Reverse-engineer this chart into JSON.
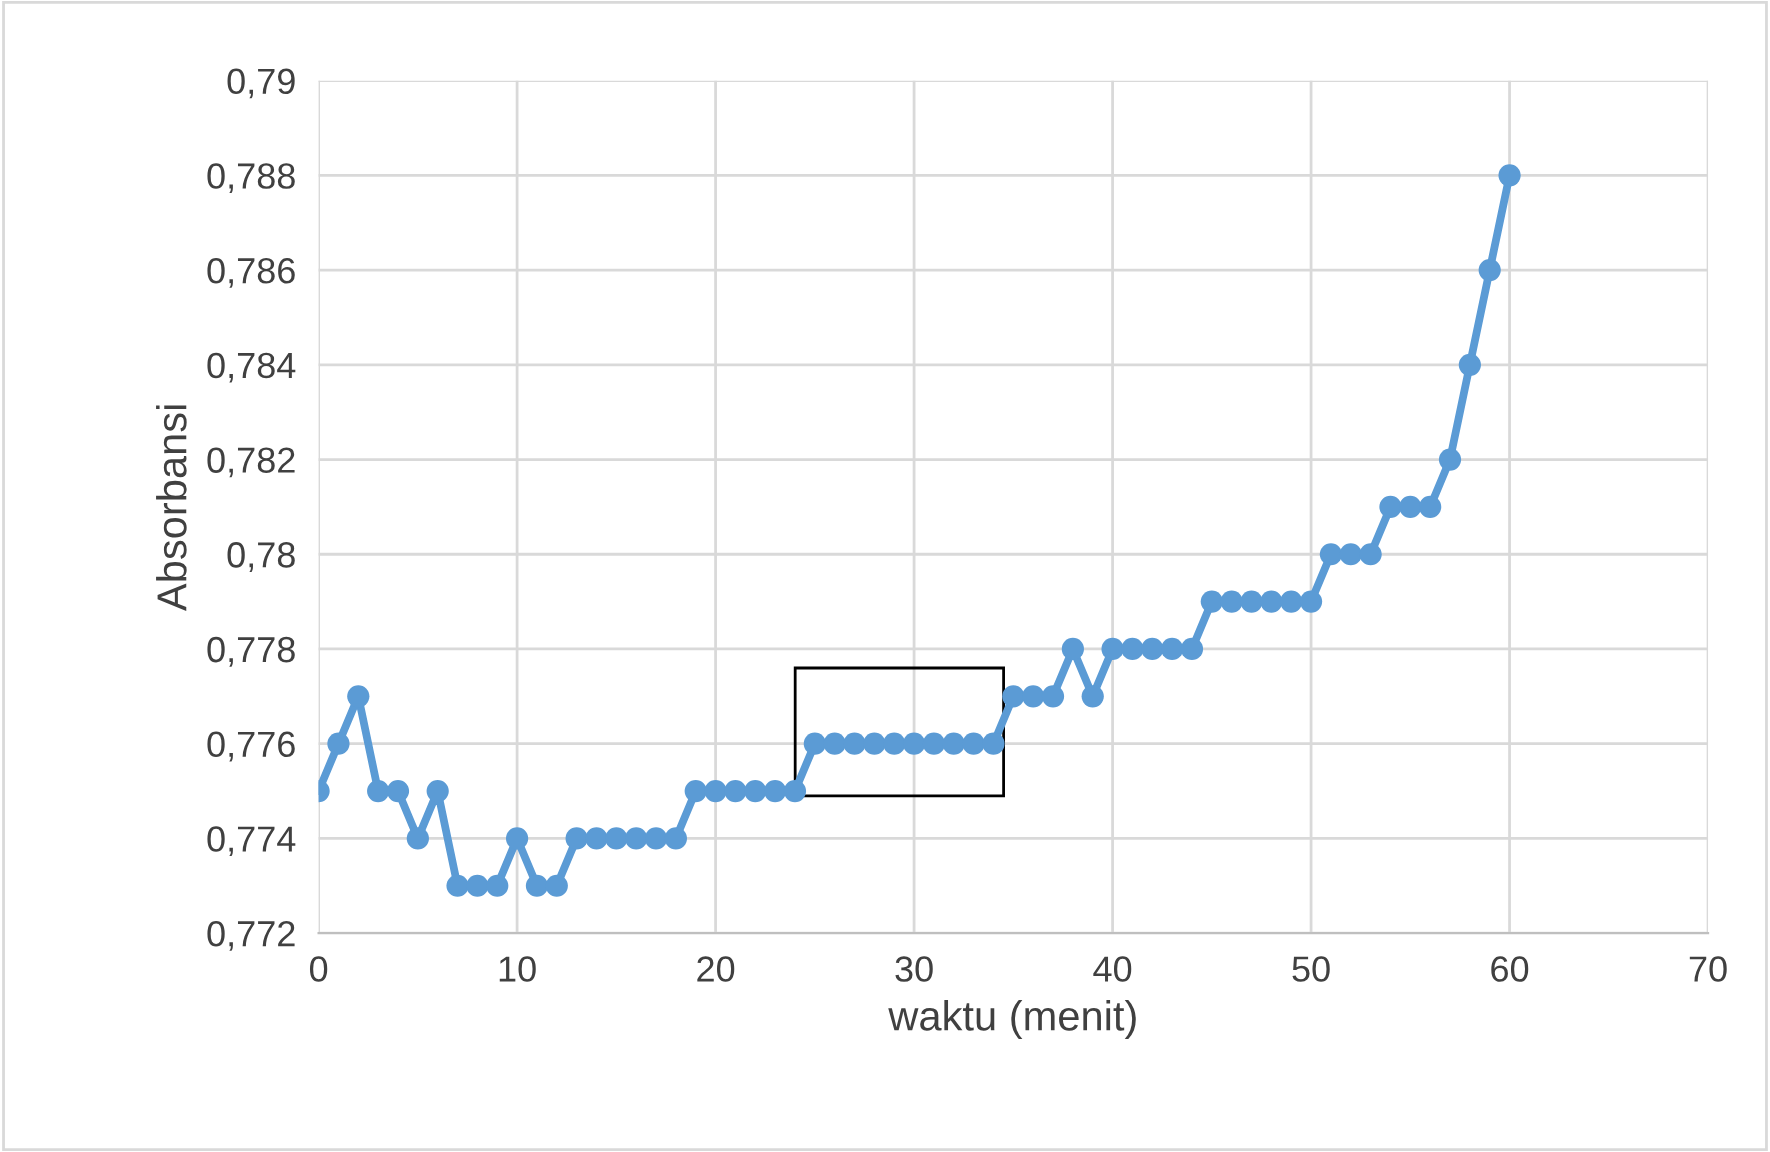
{
  "chart_data": {
    "type": "line",
    "xlabel": "waktu (menit)",
    "ylabel": "Absorbansi",
    "x": [
      0,
      1,
      2,
      3,
      4,
      5,
      6,
      7,
      8,
      9,
      10,
      11,
      12,
      13,
      14,
      15,
      16,
      17,
      18,
      19,
      20,
      21,
      22,
      23,
      24,
      25,
      26,
      27,
      28,
      29,
      30,
      31,
      32,
      33,
      34,
      35,
      36,
      37,
      38,
      39,
      40,
      41,
      42,
      43,
      44,
      45,
      46,
      47,
      48,
      49,
      50,
      51,
      52,
      53,
      54,
      55,
      56,
      57,
      58,
      59,
      60
    ],
    "series": [
      {
        "color": "#5b9bd5",
        "values": [
          0.775,
          0.776,
          0.777,
          0.775,
          0.775,
          0.774,
          0.775,
          0.773,
          0.773,
          0.773,
          0.774,
          0.773,
          0.773,
          0.774,
          0.774,
          0.774,
          0.774,
          0.774,
          0.774,
          0.775,
          0.775,
          0.775,
          0.775,
          0.775,
          0.775,
          0.776,
          0.776,
          0.776,
          0.776,
          0.776,
          0.776,
          0.776,
          0.776,
          0.776,
          0.776,
          0.777,
          0.777,
          0.777,
          0.778,
          0.777,
          0.778,
          0.778,
          0.778,
          0.778,
          0.778,
          0.779,
          0.779,
          0.779,
          0.779,
          0.779,
          0.779,
          0.78,
          0.78,
          0.78,
          0.781,
          0.781,
          0.781,
          0.782,
          0.784,
          0.786,
          0.788
        ]
      }
    ],
    "xlim": [
      0,
      70
    ],
    "xticks": [
      0,
      10,
      20,
      30,
      40,
      50,
      60,
      70
    ],
    "ylim": [
      0.772,
      0.79
    ],
    "yticks": [
      {
        "value": 0.772,
        "label": "0,772"
      },
      {
        "value": 0.774,
        "label": "0,774"
      },
      {
        "value": 0.776,
        "label": "0,776"
      },
      {
        "value": 0.778,
        "label": "0,778"
      },
      {
        "value": 0.78,
        "label": "0,78"
      },
      {
        "value": 0.782,
        "label": "0,782"
      },
      {
        "value": 0.784,
        "label": "0,784"
      },
      {
        "value": 0.786,
        "label": "0,786"
      },
      {
        "value": 0.788,
        "label": "0,788"
      },
      {
        "value": 0.79,
        "label": "0,79"
      }
    ],
    "grid": true,
    "marker": "circle",
    "line_style": "solid"
  }
}
